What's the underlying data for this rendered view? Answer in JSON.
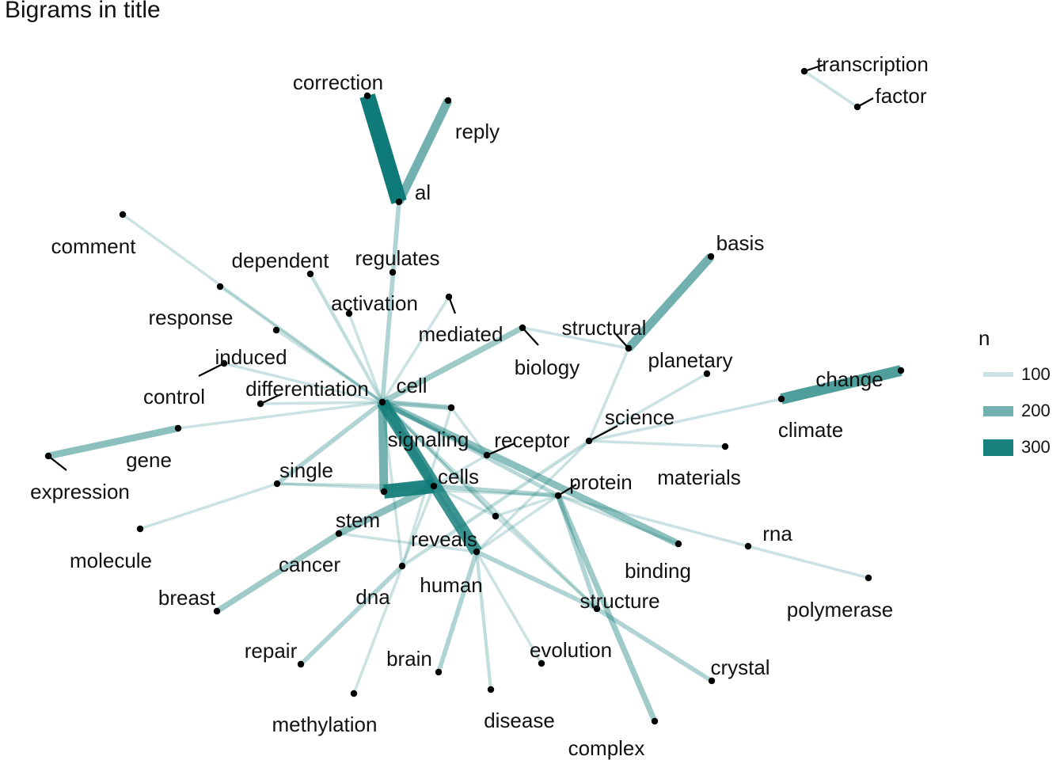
{
  "title": "Bigrams in title",
  "colors": {
    "edge": "#0f7b78",
    "node": "#000000",
    "text": "#111111",
    "leader": "#000000"
  },
  "legend": {
    "title": "n",
    "items": [
      {
        "label": "100",
        "value": 100
      },
      {
        "label": "200",
        "value": 200
      },
      {
        "label": "300",
        "value": 300
      }
    ]
  },
  "nodes": [
    {
      "id": "correction",
      "label": "correction"
    },
    {
      "id": "reply",
      "label": "reply"
    },
    {
      "id": "al",
      "label": "al"
    },
    {
      "id": "transcription",
      "label": "transcription"
    },
    {
      "id": "factor",
      "label": "factor"
    },
    {
      "id": "comment",
      "label": "comment"
    },
    {
      "id": "dependent",
      "label": "dependent"
    },
    {
      "id": "regulates",
      "label": "regulates"
    },
    {
      "id": "basis",
      "label": "basis"
    },
    {
      "id": "response",
      "label": "response"
    },
    {
      "id": "activation",
      "label": "activation"
    },
    {
      "id": "mediated",
      "label": "mediated"
    },
    {
      "id": "structural",
      "label": "structural"
    },
    {
      "id": "biology",
      "label": "biology"
    },
    {
      "id": "induced",
      "label": "induced"
    },
    {
      "id": "planetary",
      "label": "planetary"
    },
    {
      "id": "control",
      "label": "control"
    },
    {
      "id": "differentiation",
      "label": "differentiation"
    },
    {
      "id": "cell",
      "label": "cell"
    },
    {
      "id": "change",
      "label": "change"
    },
    {
      "id": "climate",
      "label": "climate"
    },
    {
      "id": "science",
      "label": "science"
    },
    {
      "id": "gene",
      "label": "gene"
    },
    {
      "id": "signaling",
      "label": "signaling"
    },
    {
      "id": "receptor",
      "label": "receptor"
    },
    {
      "id": "expression",
      "label": "expression"
    },
    {
      "id": "single",
      "label": "single"
    },
    {
      "id": "cells",
      "label": "cells"
    },
    {
      "id": "protein",
      "label": "protein"
    },
    {
      "id": "materials",
      "label": "materials"
    },
    {
      "id": "stem",
      "label": "stem"
    },
    {
      "id": "molecule",
      "label": "molecule"
    },
    {
      "id": "rna",
      "label": "rna"
    },
    {
      "id": "reveals",
      "label": "reveals"
    },
    {
      "id": "cancer",
      "label": "cancer"
    },
    {
      "id": "binding",
      "label": "binding"
    },
    {
      "id": "dna",
      "label": "dna"
    },
    {
      "id": "human",
      "label": "human"
    },
    {
      "id": "breast",
      "label": "breast"
    },
    {
      "id": "structure",
      "label": "structure"
    },
    {
      "id": "polymerase",
      "label": "polymerase"
    },
    {
      "id": "repair",
      "label": "repair"
    },
    {
      "id": "evolution",
      "label": "evolution"
    },
    {
      "id": "brain",
      "label": "brain"
    },
    {
      "id": "crystal",
      "label": "crystal"
    },
    {
      "id": "methylation",
      "label": "methylation"
    },
    {
      "id": "disease",
      "label": "disease"
    },
    {
      "id": "complex",
      "label": "complex"
    },
    {
      "id": "hub2",
      "label": ""
    },
    {
      "id": "hub3",
      "label": ""
    }
  ],
  "edges": [
    {
      "from": "correction",
      "to": "al",
      "n": 320
    },
    {
      "from": "reply",
      "to": "al",
      "n": 200
    },
    {
      "from": "transcription",
      "to": "factor",
      "n": 100
    },
    {
      "from": "structural",
      "to": "basis",
      "n": 200
    },
    {
      "from": "climate",
      "to": "change",
      "n": 240
    },
    {
      "from": "gene",
      "to": "expression",
      "n": 170
    },
    {
      "from": "comment",
      "to": "cell",
      "n": 100
    },
    {
      "from": "response",
      "to": "cell",
      "n": 100
    },
    {
      "from": "dependent",
      "to": "cell",
      "n": 110
    },
    {
      "from": "activation",
      "to": "cell",
      "n": 100
    },
    {
      "from": "al",
      "to": "cell",
      "n": 130
    },
    {
      "from": "mediated",
      "to": "cell",
      "n": 100
    },
    {
      "from": "biology",
      "to": "cell",
      "n": 150
    },
    {
      "from": "biology",
      "to": "structural",
      "n": 100
    },
    {
      "from": "induced",
      "to": "cell",
      "n": 100
    },
    {
      "from": "control",
      "to": "cell",
      "n": 100
    },
    {
      "from": "differentiation",
      "to": "cell",
      "n": 100
    },
    {
      "from": "cell",
      "to": "gene",
      "n": 100
    },
    {
      "from": "cell",
      "to": "single",
      "n": 130
    },
    {
      "from": "cell",
      "to": "stem",
      "n": 200
    },
    {
      "from": "cell",
      "to": "cells",
      "n": 190
    },
    {
      "from": "cell",
      "to": "signaling",
      "n": 140
    },
    {
      "from": "cell",
      "to": "hub2",
      "n": 100
    },
    {
      "from": "cell",
      "to": "protein",
      "n": 120
    },
    {
      "from": "cell",
      "to": "receptor",
      "n": 120
    },
    {
      "from": "cell",
      "to": "binding",
      "n": 170
    },
    {
      "from": "cell",
      "to": "human",
      "n": 260
    },
    {
      "from": "cell",
      "to": "structure",
      "n": 110
    },
    {
      "from": "cell",
      "to": "reveals",
      "n": 100
    },
    {
      "from": "cell",
      "to": "dna",
      "n": 100
    },
    {
      "from": "cell",
      "to": "hub3",
      "n": 100
    },
    {
      "from": "cells",
      "to": "stem",
      "n": 290
    },
    {
      "from": "cells",
      "to": "human",
      "n": 110
    },
    {
      "from": "cells",
      "to": "cancer",
      "n": 170
    },
    {
      "from": "cells",
      "to": "protein",
      "n": 130
    },
    {
      "from": "cells",
      "to": "single",
      "n": 100
    },
    {
      "from": "cells",
      "to": "dna",
      "n": 100
    },
    {
      "from": "cells",
      "to": "reveals",
      "n": 100
    },
    {
      "from": "cancer",
      "to": "breast",
      "n": 150
    },
    {
      "from": "cancer",
      "to": "human",
      "n": 100
    },
    {
      "from": "molecule",
      "to": "single",
      "n": 100
    },
    {
      "from": "single",
      "to": "protein",
      "n": 100
    },
    {
      "from": "protein",
      "to": "structure",
      "n": 130
    },
    {
      "from": "protein",
      "to": "complex",
      "n": 150
    },
    {
      "from": "protein",
      "to": "binding",
      "n": 100
    },
    {
      "from": "protein",
      "to": "reveals",
      "n": 100
    },
    {
      "from": "protein",
      "to": "human",
      "n": 100
    },
    {
      "from": "receptor",
      "to": "hub2",
      "n": 100
    },
    {
      "from": "receptor",
      "to": "cells",
      "n": 100
    },
    {
      "from": "science",
      "to": "structural",
      "n": 100
    },
    {
      "from": "science",
      "to": "planetary",
      "n": 100
    },
    {
      "from": "science",
      "to": "climate",
      "n": 100
    },
    {
      "from": "science",
      "to": "materials",
      "n": 100
    },
    {
      "from": "science",
      "to": "dna",
      "n": 110
    },
    {
      "from": "science",
      "to": "human",
      "n": 100
    },
    {
      "from": "rna",
      "to": "polymerase",
      "n": 100
    },
    {
      "from": "rna",
      "to": "protein",
      "n": 100
    },
    {
      "from": "dna",
      "to": "repair",
      "n": 130
    },
    {
      "from": "dna",
      "to": "methylation",
      "n": 100
    },
    {
      "from": "human",
      "to": "brain",
      "n": 130
    },
    {
      "from": "human",
      "to": "disease",
      "n": 110
    },
    {
      "from": "human",
      "to": "evolution",
      "n": 100
    },
    {
      "from": "human",
      "to": "structure",
      "n": 130
    },
    {
      "from": "structure",
      "to": "crystal",
      "n": 130
    },
    {
      "from": "hub2",
      "to": "dna",
      "n": 100
    },
    {
      "from": "hub3",
      "to": "structure",
      "n": 100
    }
  ]
}
